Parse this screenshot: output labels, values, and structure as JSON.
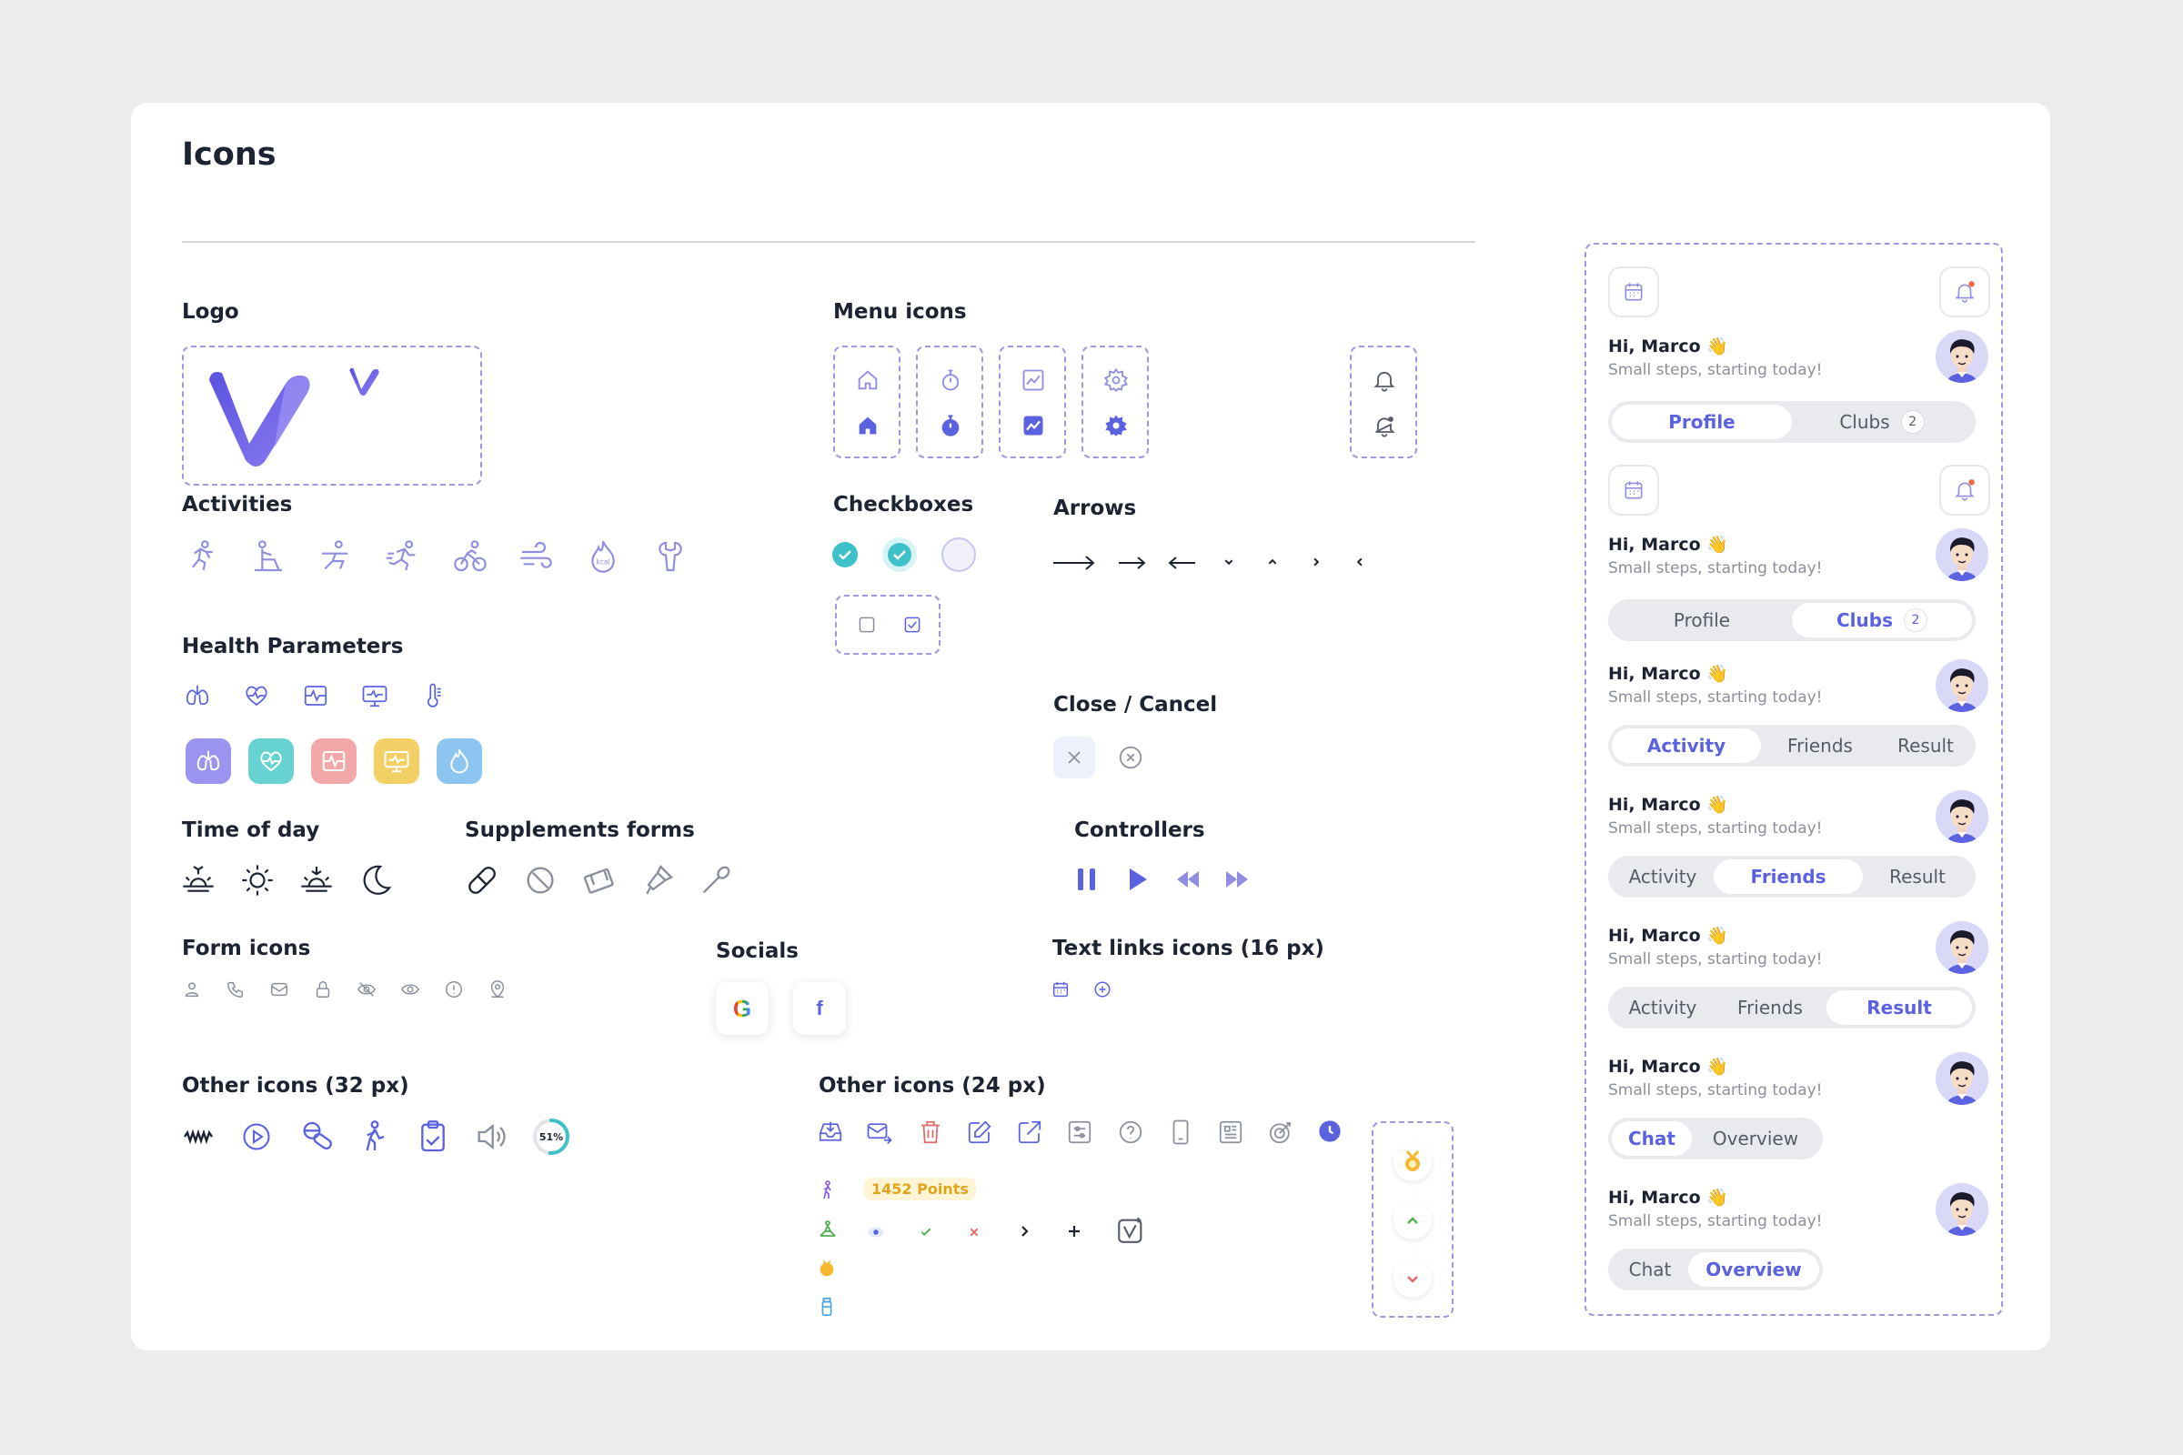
{
  "page": {
    "title": "Icons"
  },
  "sections": {
    "logo": "Logo",
    "menu_icons": "Menu icons",
    "activities": "Activities",
    "checkboxes": "Checkboxes",
    "arrows": "Arrows",
    "health": "Health Parameters",
    "close_cancel": "Close / Cancel",
    "time_of_day": "Time of day",
    "supplements": "Supplements forms",
    "controllers": "Controllers",
    "form_icons": "Form icons",
    "socials": "Socials",
    "text_links": "Text links icons (16 px)",
    "other32": "Other icons (32 px)",
    "other24": "Other icons (24 px)"
  },
  "colors": {
    "accent": "#5b62e0",
    "outline": "#8f8ee0",
    "teal": "#3ec1c9",
    "dashed": "#a594e0"
  },
  "health_tiles": [
    {
      "icon": "lungs-icon",
      "color": "#9b93f0"
    },
    {
      "icon": "heart-rate-icon",
      "color": "#66d2d2"
    },
    {
      "icon": "ecg-icon",
      "color": "#f2a8a8"
    },
    {
      "icon": "monitor-pulse-icon",
      "color": "#f2d066"
    },
    {
      "icon": "kcal-flame-icon",
      "color": "#8cc6f0"
    }
  ],
  "socials": {
    "google": "G",
    "facebook": "f"
  },
  "other24": {
    "points_badge": "1452 Points",
    "progress_percent": "51%"
  },
  "panel": {
    "greeting": "Hi, Marco",
    "wave": "👋",
    "subtitle": "Small steps, starting today!",
    "tabs_profile": {
      "a": "Profile",
      "b": "Clubs",
      "badge": "2"
    },
    "tabs_activity": {
      "a": "Activity",
      "b": "Friends",
      "c": "Result"
    },
    "tabs_chat": {
      "a": "Chat",
      "b": "Overview"
    }
  }
}
